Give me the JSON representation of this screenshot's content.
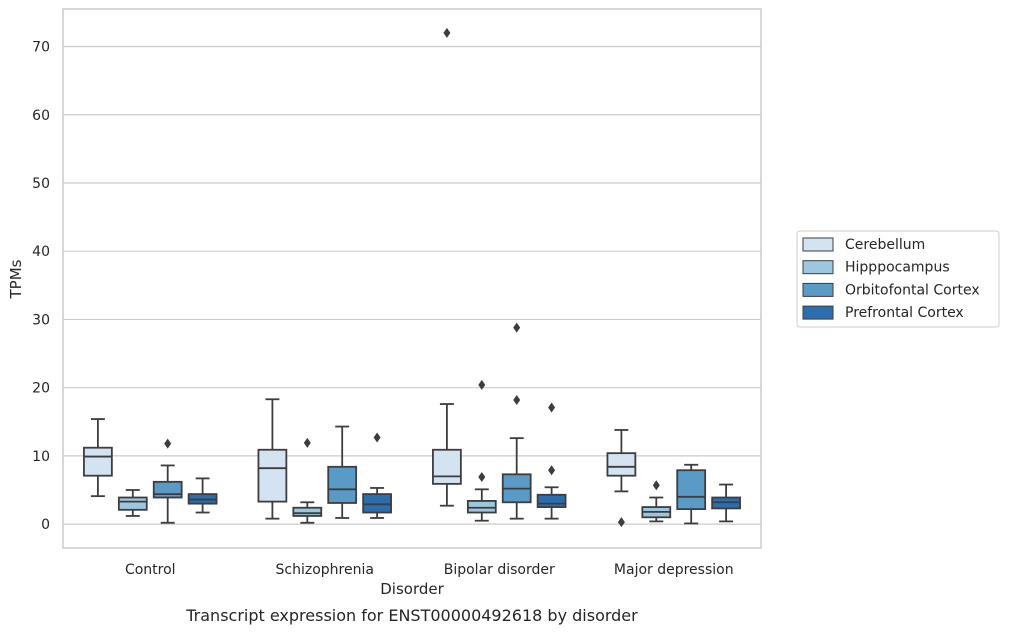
{
  "chart_data": {
    "type": "box",
    "xlabel": "Disorder",
    "ylabel": "TPMs",
    "caption": "Transcript expression for ENST00000492618 by disorder",
    "ylim": [
      -3.5,
      75.5
    ],
    "yticks": [
      0,
      10,
      20,
      30,
      40,
      50,
      60,
      70
    ],
    "categories": [
      "Control",
      "Schizophrenia",
      "Bipolar disorder",
      "Major depression"
    ],
    "grid": "horizontal",
    "legend_position": "right",
    "series": [
      {
        "name": "Cerebellum",
        "color": "#d4e3f2",
        "boxes": [
          {
            "min": 4.1,
            "q1": 7.1,
            "median": 9.9,
            "q3": 11.2,
            "max": 15.4,
            "outliers": []
          },
          {
            "min": 0.8,
            "q1": 3.3,
            "median": 8.2,
            "q3": 10.9,
            "max": 18.3,
            "outliers": []
          },
          {
            "min": 2.7,
            "q1": 5.9,
            "median": 7.0,
            "q3": 10.9,
            "max": 17.6,
            "outliers": [
              72.0
            ]
          },
          {
            "min": 4.8,
            "q1": 7.1,
            "median": 8.4,
            "q3": 10.4,
            "max": 13.8,
            "outliers": [
              0.3
            ]
          }
        ]
      },
      {
        "name": "Hipppocampus",
        "color": "#9dc6df",
        "boxes": [
          {
            "min": 1.2,
            "q1": 2.1,
            "median": 3.3,
            "q3": 3.9,
            "max": 5.0,
            "outliers": []
          },
          {
            "min": 0.2,
            "q1": 1.2,
            "median": 1.6,
            "q3": 2.4,
            "max": 3.2,
            "outliers": [
              11.9
            ]
          },
          {
            "min": 0.5,
            "q1": 1.7,
            "median": 2.4,
            "q3": 3.4,
            "max": 5.1,
            "outliers": [
              20.4,
              6.9
            ]
          },
          {
            "min": 0.4,
            "q1": 1.0,
            "median": 1.8,
            "q3": 2.5,
            "max": 3.9,
            "outliers": [
              5.7
            ]
          }
        ]
      },
      {
        "name": "Orbitofontal Cortex",
        "color": "#5a9ac7",
        "boxes": [
          {
            "min": 0.2,
            "q1": 3.9,
            "median": 4.4,
            "q3": 6.2,
            "max": 8.6,
            "outliers": [
              11.8
            ]
          },
          {
            "min": 0.9,
            "q1": 3.1,
            "median": 5.1,
            "q3": 8.4,
            "max": 14.3,
            "outliers": []
          },
          {
            "min": 0.8,
            "q1": 3.2,
            "median": 5.2,
            "q3": 7.3,
            "max": 12.6,
            "outliers": [
              28.8,
              18.2
            ]
          },
          {
            "min": 0.1,
            "q1": 2.2,
            "median": 4.0,
            "q3": 7.9,
            "max": 8.7,
            "outliers": []
          }
        ]
      },
      {
        "name": "Prefrontal Cortex",
        "color": "#2a6eb0",
        "boxes": [
          {
            "min": 1.7,
            "q1": 3.0,
            "median": 3.6,
            "q3": 4.4,
            "max": 6.7,
            "outliers": []
          },
          {
            "min": 0.9,
            "q1": 1.7,
            "median": 2.9,
            "q3": 4.4,
            "max": 5.3,
            "outliers": [
              12.7
            ]
          },
          {
            "min": 0.8,
            "q1": 2.5,
            "median": 3.0,
            "q3": 4.3,
            "max": 5.4,
            "outliers": [
              17.1,
              7.9
            ]
          },
          {
            "min": 0.4,
            "q1": 2.3,
            "median": 3.2,
            "q3": 3.9,
            "max": 5.8,
            "outliers": []
          }
        ]
      }
    ]
  }
}
